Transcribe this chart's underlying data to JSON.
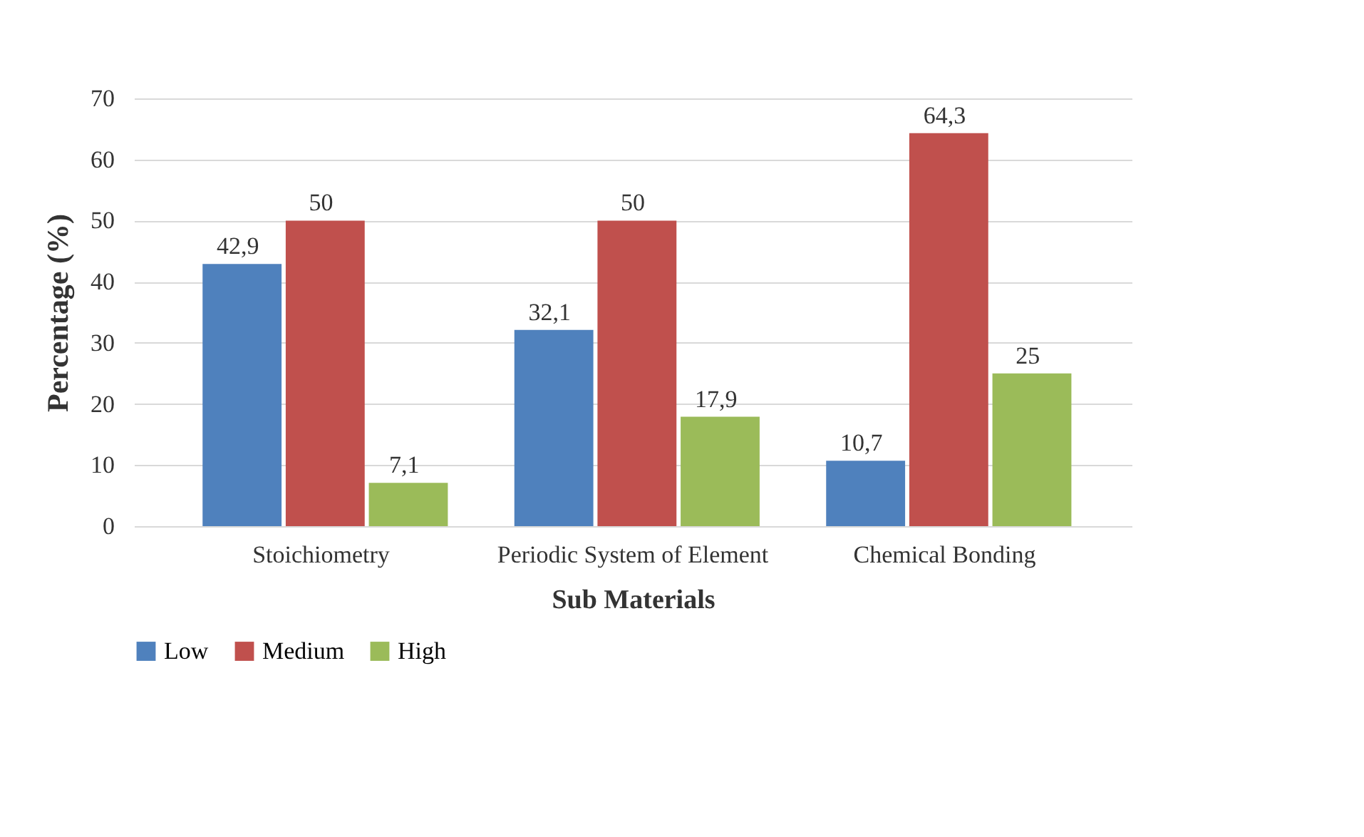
{
  "chart_data": {
    "type": "bar",
    "xlabel": "Sub Materials",
    "ylabel": "Percentage (%)",
    "categories": [
      "Stoichiometry",
      "Periodic System of Element",
      "Chemical Bonding"
    ],
    "series": [
      {
        "name": "Low",
        "color": "#4f81bd",
        "values": [
          42.9,
          32.1,
          10.7
        ],
        "value_labels": [
          "42,9",
          "32,1",
          "10,7"
        ]
      },
      {
        "name": "Medium",
        "color": "#c0504d",
        "values": [
          50,
          50,
          64.3
        ],
        "value_labels": [
          "50",
          "50",
          "64,3"
        ]
      },
      {
        "name": "High",
        "color": "#9bbb59",
        "values": [
          7.1,
          17.9,
          25
        ],
        "value_labels": [
          "7,1",
          "17,9",
          "25"
        ]
      }
    ],
    "ylim": [
      0,
      70
    ],
    "yticks": [
      0,
      10,
      20,
      30,
      40,
      50,
      60,
      70
    ],
    "grid": "y",
    "legend": "bottom"
  }
}
